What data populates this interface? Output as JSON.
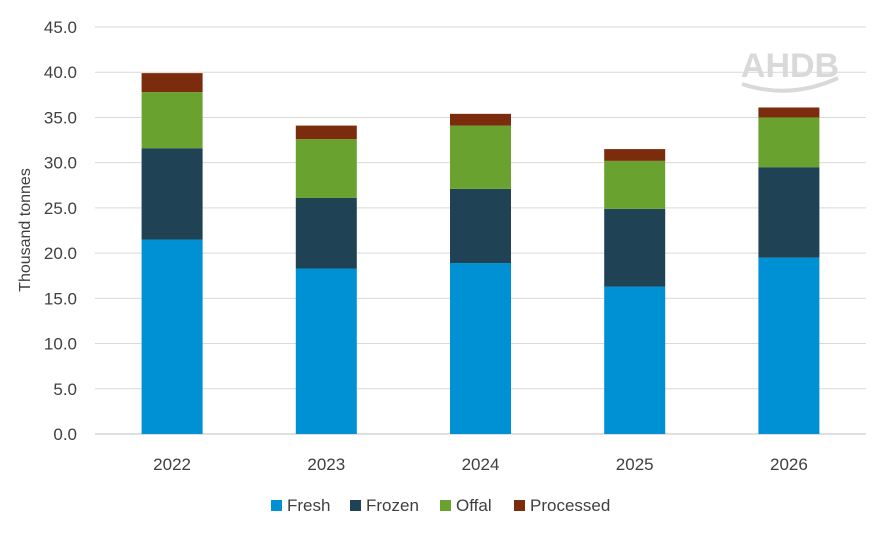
{
  "logo": {
    "text": "AHDB"
  },
  "chart_data": {
    "type": "bar",
    "stacked": true,
    "title": "",
    "xlabel": "",
    "ylabel": "Thousand tonnes",
    "ylim": [
      0,
      45
    ],
    "ytick_step": 5,
    "ytick_labels": [
      "0.0",
      "5.0",
      "10.0",
      "15.0",
      "20.0",
      "25.0",
      "30.0",
      "35.0",
      "40.0",
      "45.0"
    ],
    "categories": [
      "2022",
      "2023",
      "2024",
      "2025",
      "2026"
    ],
    "grid": true,
    "legend_position": "bottom",
    "series": [
      {
        "name": "Fresh",
        "color": "#0090d4",
        "values": [
          21.5,
          18.3,
          18.9,
          16.3,
          19.5
        ]
      },
      {
        "name": "Frozen",
        "color": "#1f4354",
        "values": [
          10.1,
          7.8,
          8.2,
          8.6,
          10.0
        ]
      },
      {
        "name": "Offal",
        "color": "#6aa22f",
        "values": [
          6.2,
          6.5,
          7.0,
          5.3,
          5.5
        ]
      },
      {
        "name": "Processed",
        "color": "#7b2c0d",
        "values": [
          2.1,
          1.5,
          1.3,
          1.3,
          1.1
        ]
      }
    ]
  }
}
